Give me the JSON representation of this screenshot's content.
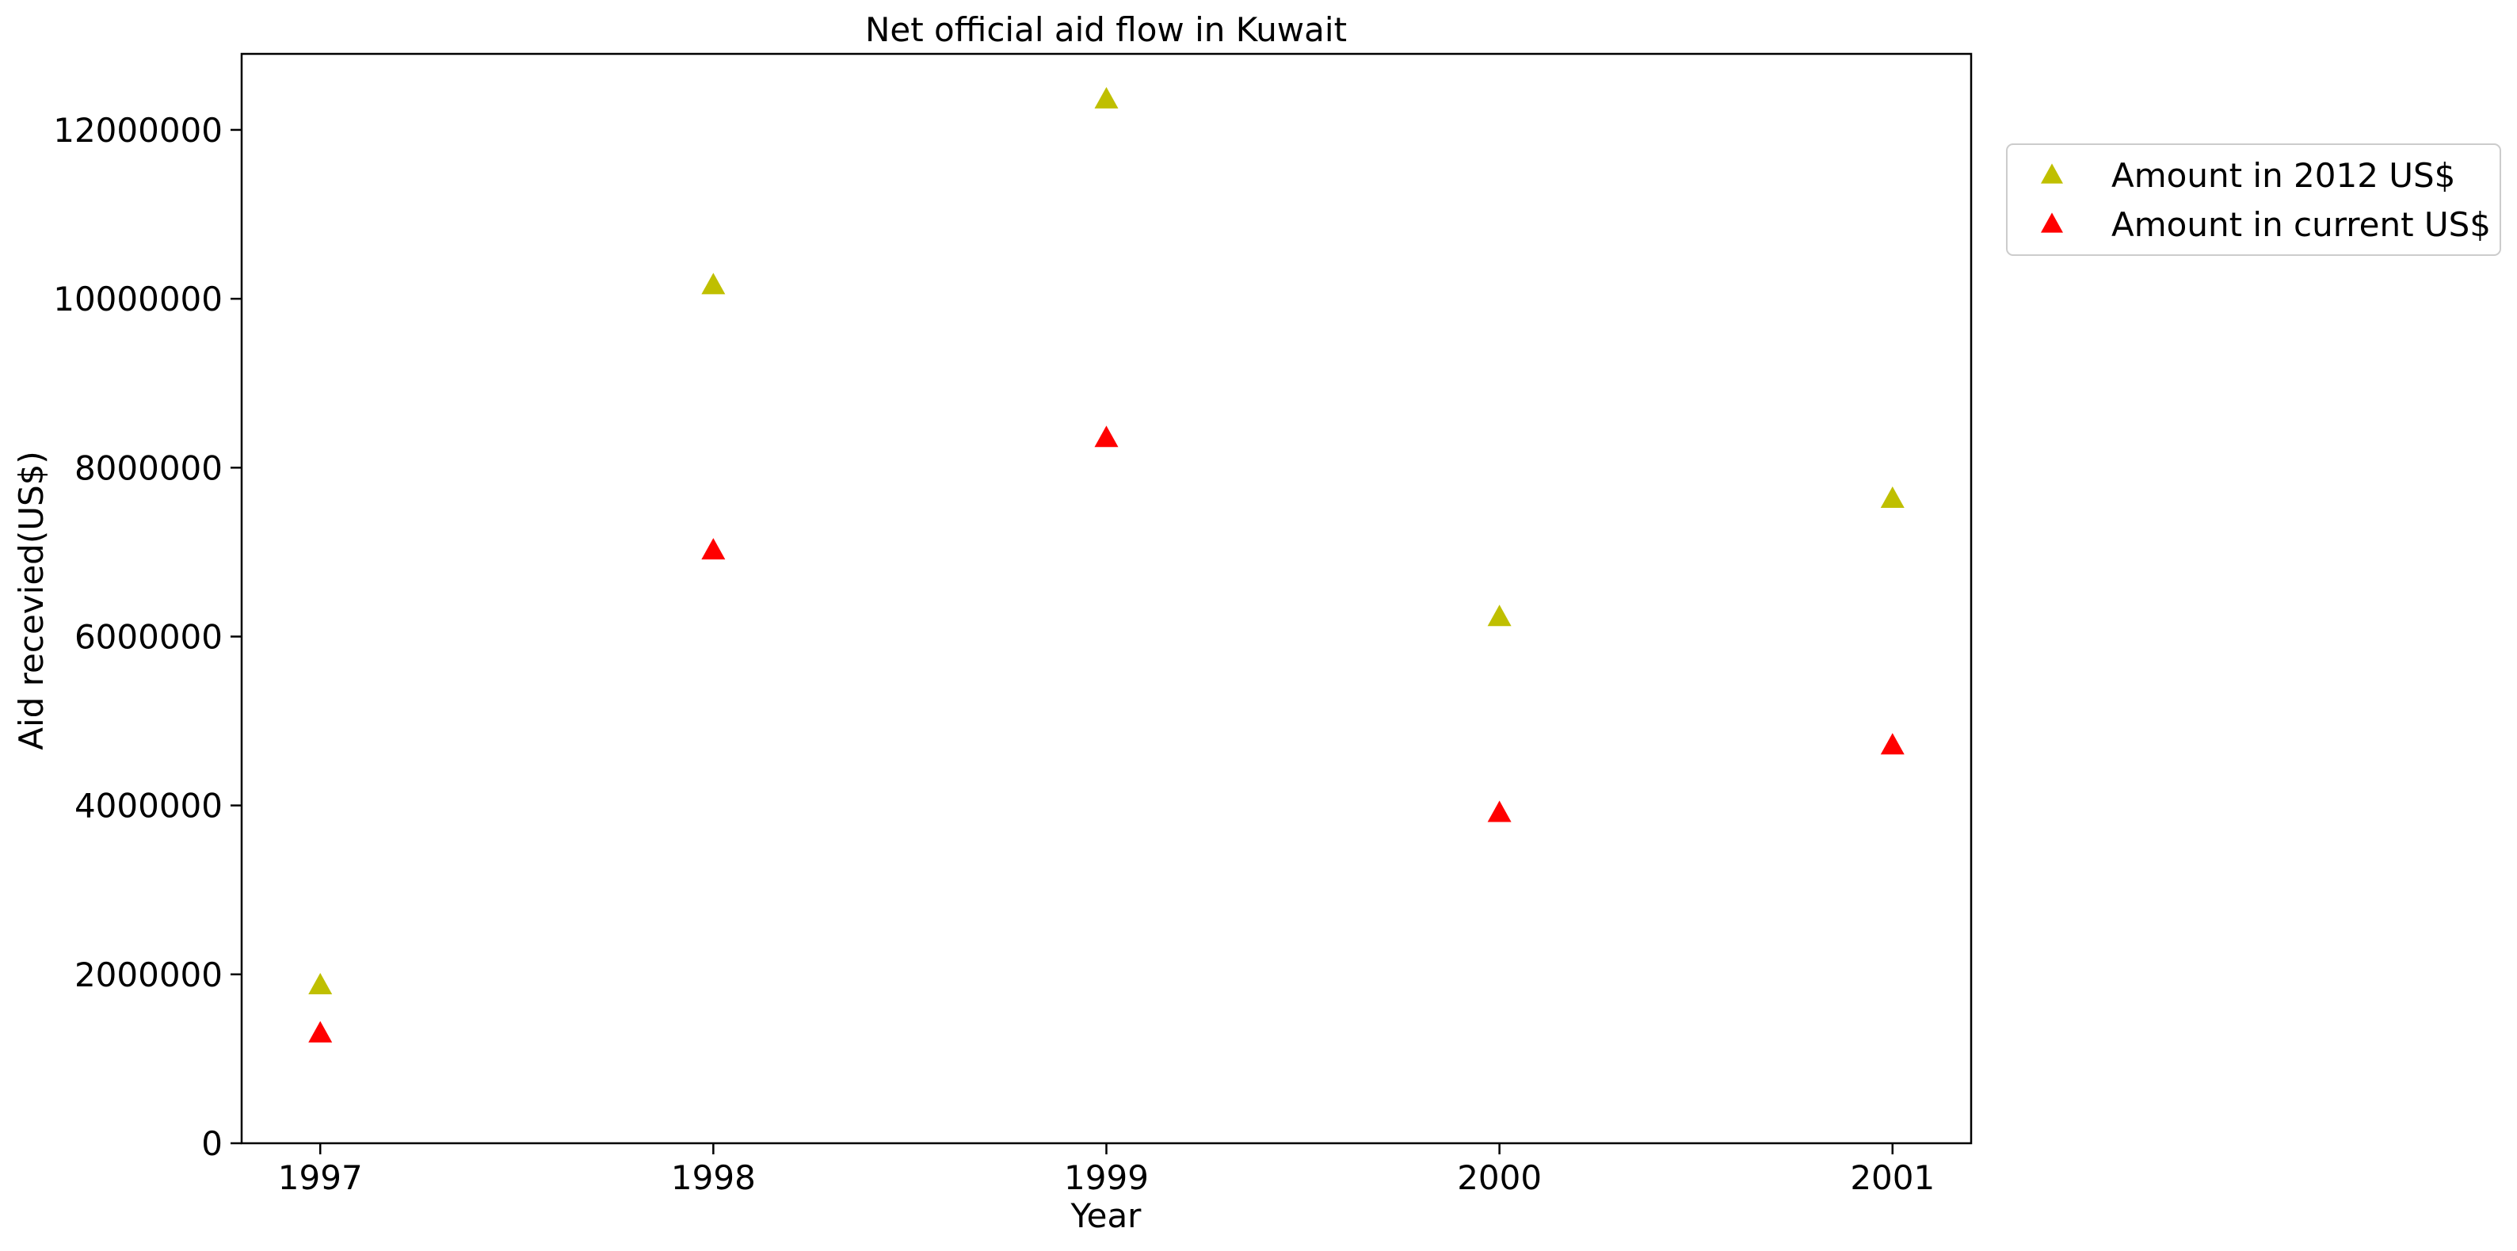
{
  "chart_data": {
    "type": "scatter",
    "title": "Net official aid flow in Kuwait",
    "xlabel": "Year",
    "ylabel": "Aid recevied(US$)",
    "x": [
      1997,
      1998,
      1999,
      2000,
      2001
    ],
    "x_tick_labels": [
      "1997",
      "1998",
      "1999",
      "2000",
      "2001"
    ],
    "xlim": [
      1996.8,
      2001.2
    ],
    "ylim": [
      0,
      12900000
    ],
    "y_ticks": [
      0,
      2000000,
      4000000,
      6000000,
      8000000,
      10000000,
      12000000
    ],
    "y_tick_labels": [
      "0",
      "2000000",
      "4000000",
      "6000000",
      "8000000",
      "10000000",
      "12000000"
    ],
    "grid": false,
    "legend_position": "outside-top-right",
    "marker": "triangle-up",
    "series": [
      {
        "name": "Amount in 2012 US$",
        "color": "#bfbf00",
        "values": [
          1860000,
          10150000,
          12350000,
          6220000,
          7620000
        ]
      },
      {
        "name": "Amount in current US$",
        "color": "#ff0000",
        "values": [
          1290000,
          7010000,
          8340000,
          3900000,
          4700000
        ]
      }
    ]
  }
}
